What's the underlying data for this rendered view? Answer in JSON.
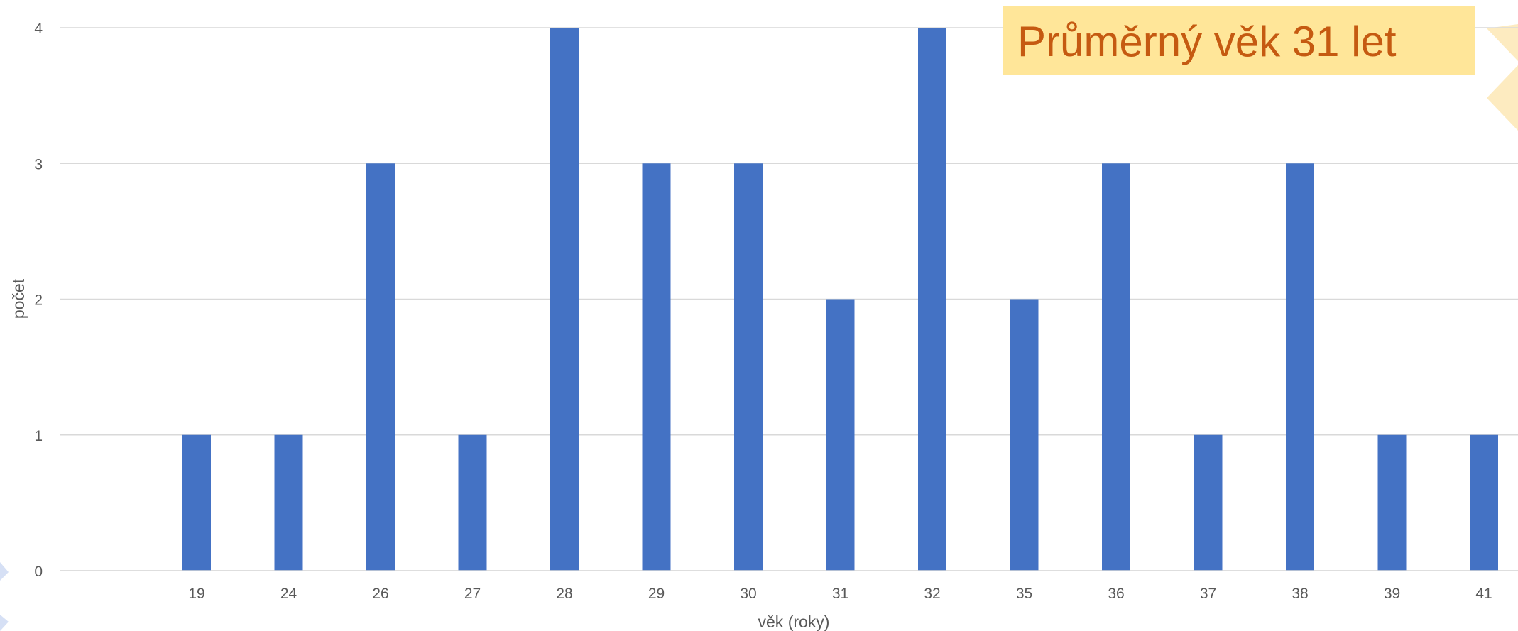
{
  "chart_data": {
    "type": "bar",
    "title": "",
    "xlabel": "věk (roky)",
    "ylabel": "počet",
    "categories": [
      "19",
      "24",
      "26",
      "27",
      "28",
      "29",
      "30",
      "31",
      "32",
      "35",
      "36",
      "37",
      "38",
      "39",
      "41"
    ],
    "values": [
      1,
      1,
      3,
      1,
      4,
      3,
      3,
      2,
      4,
      2,
      3,
      1,
      3,
      1,
      1
    ],
    "ylim": [
      0,
      4
    ],
    "yticks": [
      "0",
      "1",
      "2",
      "3",
      "4"
    ],
    "grid": true,
    "legend": "none",
    "bar_color": "#4472c4",
    "grid_color": "#d9d9d9",
    "annotation": {
      "text": "Průměrný věk 31 let",
      "placement": "top-right",
      "background": "#ffe699",
      "text_color": "#c55a11"
    }
  }
}
